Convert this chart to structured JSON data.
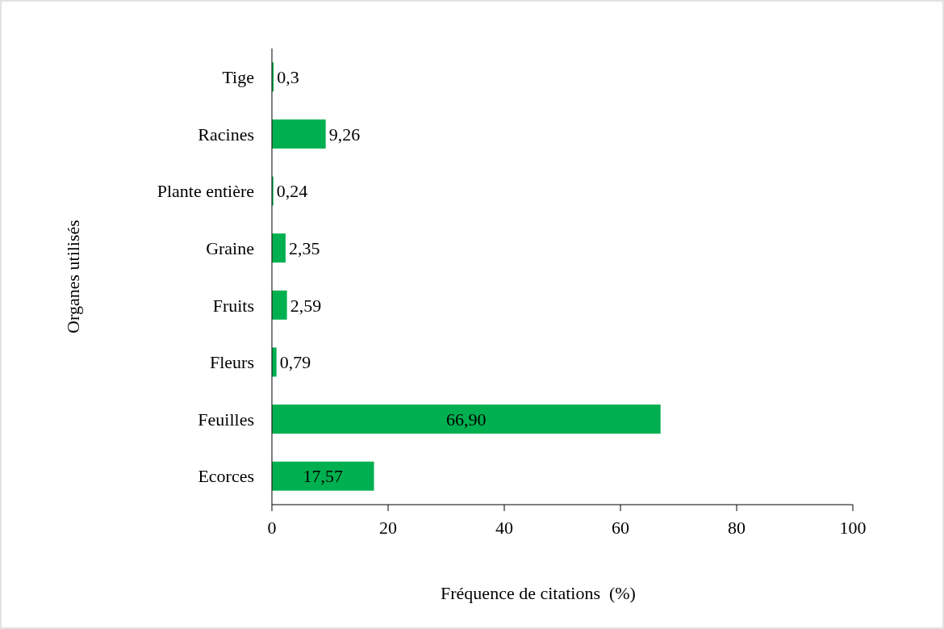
{
  "chart_data": {
    "type": "bar",
    "orientation": "horizontal",
    "xlabel": "Fréquence de citations  (%)",
    "ylabel": "Organes utilisés",
    "categories": [
      "Tige",
      "Racines",
      "Plante entière",
      "Graine",
      "Fruits",
      "Fleurs",
      "Feuilles",
      "Ecorces"
    ],
    "values": [
      0.3,
      9.26,
      0.24,
      2.35,
      2.59,
      0.79,
      66.9,
      17.57
    ],
    "value_labels": [
      "0,3",
      "9,26",
      "0,24",
      "2,35",
      "2,59",
      "0,79",
      "66,90",
      "17,57"
    ],
    "color": "#00b050",
    "xlim": [
      0,
      100
    ],
    "xticks": [
      0,
      20,
      40,
      60,
      80,
      100
    ],
    "grid": false
  }
}
